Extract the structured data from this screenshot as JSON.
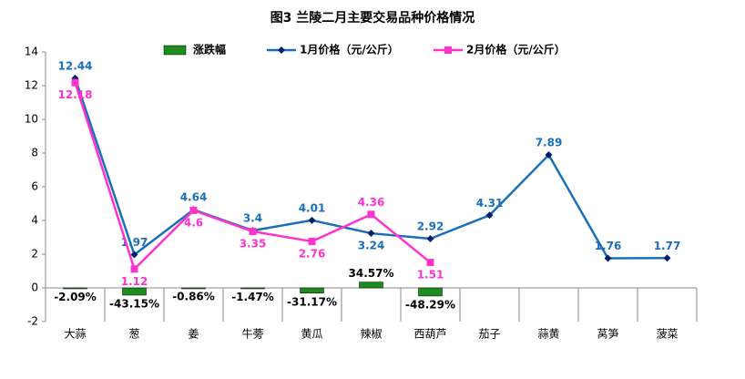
{
  "chart_data": {
    "type": "bar-line",
    "title": "图3 兰陵二月主要交易品种价格情况",
    "categories": [
      "大蒜",
      "葱",
      "姜",
      "牛蒡",
      "黄瓜",
      "辣椒",
      "西葫芦",
      "茄子",
      "蒜黄",
      "莴笋",
      "菠菜"
    ],
    "series": [
      {
        "name": "涨跌幅",
        "type": "bar",
        "color": "#1e8c1e",
        "values": [
          -0.0209,
          -0.4315,
          -0.0086,
          -0.0147,
          -0.3117,
          0.3457,
          -0.4829,
          null,
          null,
          null,
          null
        ],
        "value_labels": [
          "-2.09%",
          "-43.15%",
          "-0.86%",
          "-1.47%",
          "-31.17%",
          "34.57%",
          "-48.29%",
          null,
          null,
          null,
          null
        ]
      },
      {
        "name": "1月价格（元/公斤）",
        "type": "line",
        "marker": "diamond",
        "color": "#1a6fba",
        "values": [
          12.44,
          1.97,
          4.64,
          3.4,
          4.01,
          3.24,
          2.92,
          4.31,
          7.89,
          1.76,
          1.77
        ]
      },
      {
        "name": "2月价格（元/公斤）",
        "type": "line",
        "marker": "square",
        "color": "#ff33cc",
        "values": [
          12.18,
          1.12,
          4.6,
          3.35,
          2.76,
          4.36,
          1.51,
          null,
          null,
          null,
          null
        ]
      }
    ],
    "ylim": [
      -2,
      14
    ],
    "yticks": [
      -2,
      0,
      2,
      4,
      6,
      8,
      10,
      12,
      14
    ],
    "legend": "top"
  }
}
